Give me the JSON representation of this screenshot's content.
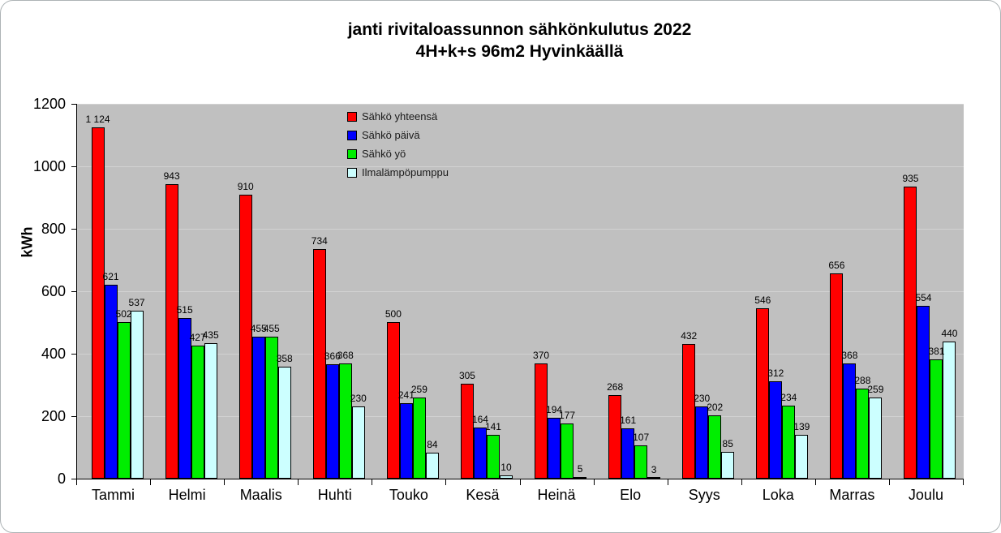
{
  "title": {
    "line1": "janti rivitaloassunnon sähkönkulutus 2022",
    "line2": "4H+k+s 96m2 Hyvinkäällä"
  },
  "chart_data": {
    "type": "bar",
    "title": "janti rivitaloassunnon sähkönkulutus 2022 4H+k+s 96m2 Hyvinkäällä",
    "categories": [
      "Tammi",
      "Helmi",
      "Maalis",
      "Huhti",
      "Touko",
      "Kesä",
      "Heinä",
      "Elo",
      "Syys",
      "Loka",
      "Marras",
      "Joulu"
    ],
    "series": [
      {
        "name": "Sähkö yhteensä",
        "color": "#ff0000",
        "values": [
          1124,
          943,
          910,
          734,
          500,
          305,
          370,
          268,
          432,
          546,
          656,
          935
        ]
      },
      {
        "name": "Sähkö päivä",
        "color": "#0000ff",
        "values": [
          621,
          515,
          455,
          366,
          241,
          164,
          194,
          161,
          230,
          312,
          368,
          554
        ]
      },
      {
        "name": "Sähkö yö",
        "color": "#00ee00",
        "values": [
          502,
          427,
          455,
          368,
          259,
          141,
          177,
          107,
          202,
          234,
          288,
          381
        ]
      },
      {
        "name": "Ilmalämpöpumppu",
        "color": "#ccffff",
        "values": [
          537,
          435,
          358,
          230,
          84,
          10,
          5,
          3,
          85,
          139,
          259,
          440
        ]
      }
    ],
    "xlabel": "",
    "ylabel": "kWh",
    "ylim": [
      0,
      1200
    ],
    "ytick_step": 200,
    "yticks": [
      "0",
      "200",
      "400",
      "600",
      "800",
      "1000",
      "1200"
    ],
    "grid": true,
    "legend_position": "top-left-inside",
    "data_labels": true,
    "thousands_separator": " ",
    "colors": {
      "plot_background": "#c0c0c0",
      "gridline": "#d2d2d2",
      "axis": "#000000",
      "text": "#000000",
      "card_background": "#ffffff",
      "card_border": "#adb3b5"
    }
  }
}
